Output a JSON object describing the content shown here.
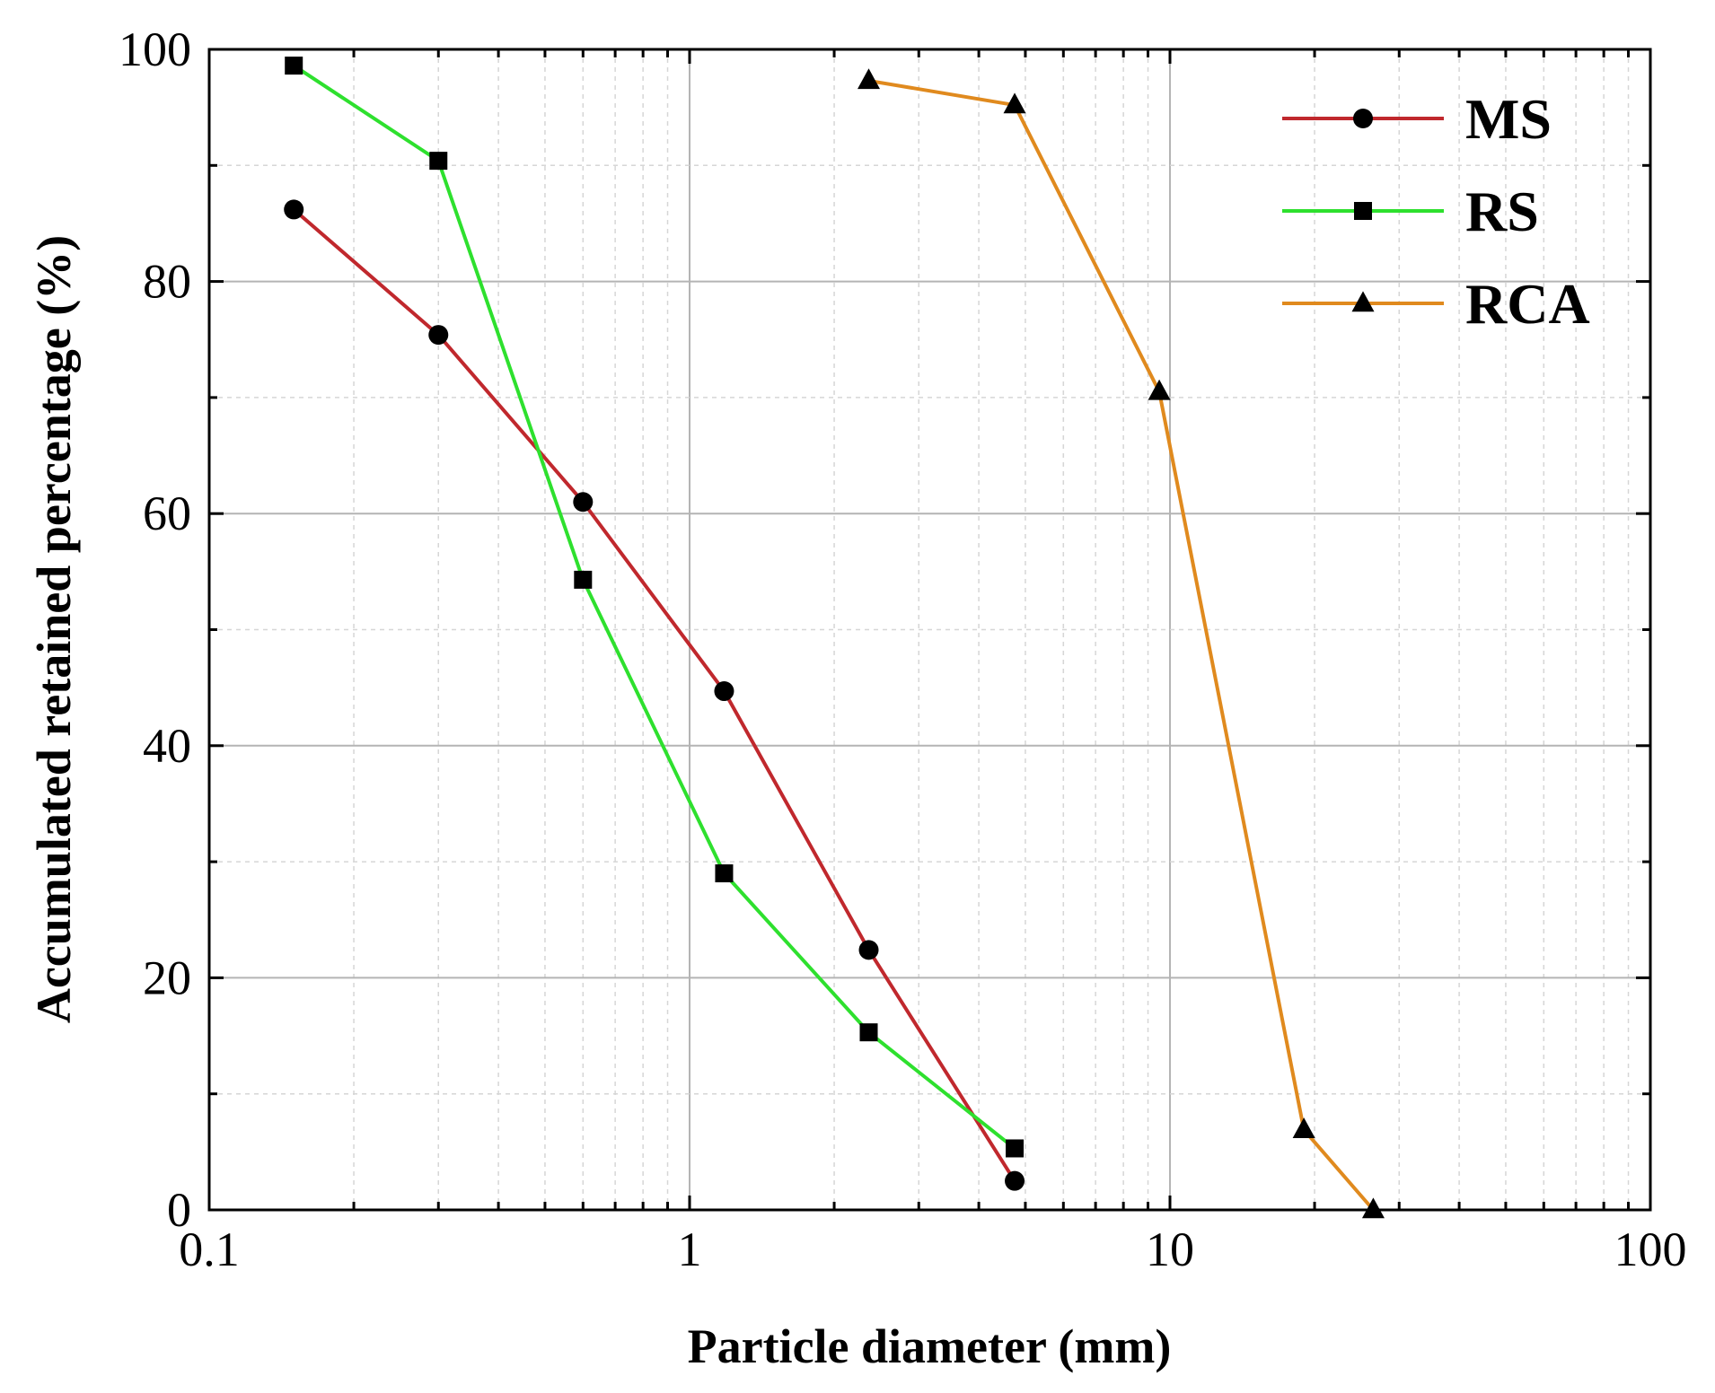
{
  "chart_data": {
    "type": "line",
    "title": "",
    "xlabel": "Particle diameter (mm)",
    "ylabel": "Accumulated retained percentage (%)",
    "xscale": "log",
    "xlim": [
      0.1,
      100
    ],
    "ylim": [
      0,
      100
    ],
    "xticks": [
      0.1,
      1,
      10,
      100
    ],
    "xtick_labels": [
      "0.1",
      "1",
      "10",
      "100"
    ],
    "yticks": [
      0,
      20,
      40,
      60,
      80,
      100
    ],
    "ytick_labels": [
      "0",
      "20",
      "40",
      "60",
      "80",
      "100"
    ],
    "grid": true,
    "legend_position": "top-right",
    "series": [
      {
        "name": "MS",
        "color": "#c0282d",
        "marker": "circle",
        "x": [
          0.15,
          0.3,
          0.6,
          1.18,
          2.36,
          4.75
        ],
        "y": [
          86.2,
          75.4,
          61.0,
          44.7,
          22.4,
          2.5
        ]
      },
      {
        "name": "RS",
        "color": "#2ee02e",
        "marker": "square",
        "x": [
          0.15,
          0.3,
          0.6,
          1.18,
          2.36,
          4.75
        ],
        "y": [
          98.6,
          90.4,
          54.3,
          29.0,
          15.3,
          5.3
        ]
      },
      {
        "name": "RCA",
        "color": "#e08a1e",
        "marker": "triangle",
        "x": [
          2.36,
          4.75,
          9.5,
          19.0,
          26.5
        ],
        "y": [
          97.3,
          95.2,
          70.5,
          6.9,
          0.0
        ]
      }
    ]
  }
}
